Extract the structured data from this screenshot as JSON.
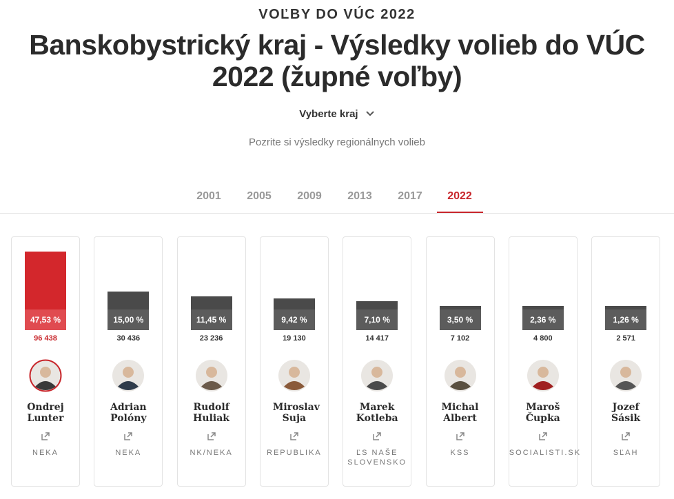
{
  "header": {
    "kicker": "VOĽBY DO VÚC 2022",
    "title": "Banskobystrický kraj - Výsledky volieb do VÚC 2022 (župné voľby)",
    "select": "Vyberte kraj",
    "subtitle": "Pozrite si výsledky regionálnych volieb"
  },
  "years": {
    "items": [
      "2001",
      "2005",
      "2009",
      "2013",
      "2017",
      "2022"
    ],
    "active": 5
  },
  "candidates": [
    {
      "name": "Ondrej Lunter",
      "party": "NEKA",
      "percent": {
        "value": 47.53,
        "label": "47,53 %"
      },
      "votes": {
        "value": 96438,
        "label": "96 438"
      },
      "winner": true
    },
    {
      "name": "Adrian Polóny",
      "party": "NEKA",
      "percent": {
        "value": 15.0,
        "label": "15,00 %"
      },
      "votes": {
        "value": 30436,
        "label": "30 436"
      },
      "winner": false
    },
    {
      "name": "Rudolf Huliak",
      "party": "NK/NEKA",
      "percent": {
        "value": 11.45,
        "label": "11,45 %"
      },
      "votes": {
        "value": 23236,
        "label": "23 236"
      },
      "winner": false
    },
    {
      "name": "Miroslav Suja",
      "party": "REPUBLIKA",
      "percent": {
        "value": 9.42,
        "label": "9,42 %"
      },
      "votes": {
        "value": 19130,
        "label": "19 130"
      },
      "winner": false
    },
    {
      "name": "Marek Kotleba",
      "party": "ĽS NAŠE SLOVENSKO",
      "percent": {
        "value": 7.1,
        "label": "7,10 %"
      },
      "votes": {
        "value": 14417,
        "label": "14 417"
      },
      "winner": false
    },
    {
      "name": "Michal Albert",
      "party": "KSS",
      "percent": {
        "value": 3.5,
        "label": "3,50 %"
      },
      "votes": {
        "value": 7102,
        "label": "7 102"
      },
      "winner": false
    },
    {
      "name": "Maroš Čupka",
      "party": "SOCIALISTI.SK",
      "percent": {
        "value": 2.36,
        "label": "2,36 %"
      },
      "votes": {
        "value": 4800,
        "label": "4 800"
      },
      "winner": false
    },
    {
      "name": "Jozef Sásik",
      "party": "SĽAH",
      "percent": {
        "value": 1.26,
        "label": "1,26 %"
      },
      "votes": {
        "value": 2571,
        "label": "2 571"
      },
      "winner": false
    }
  ]
}
